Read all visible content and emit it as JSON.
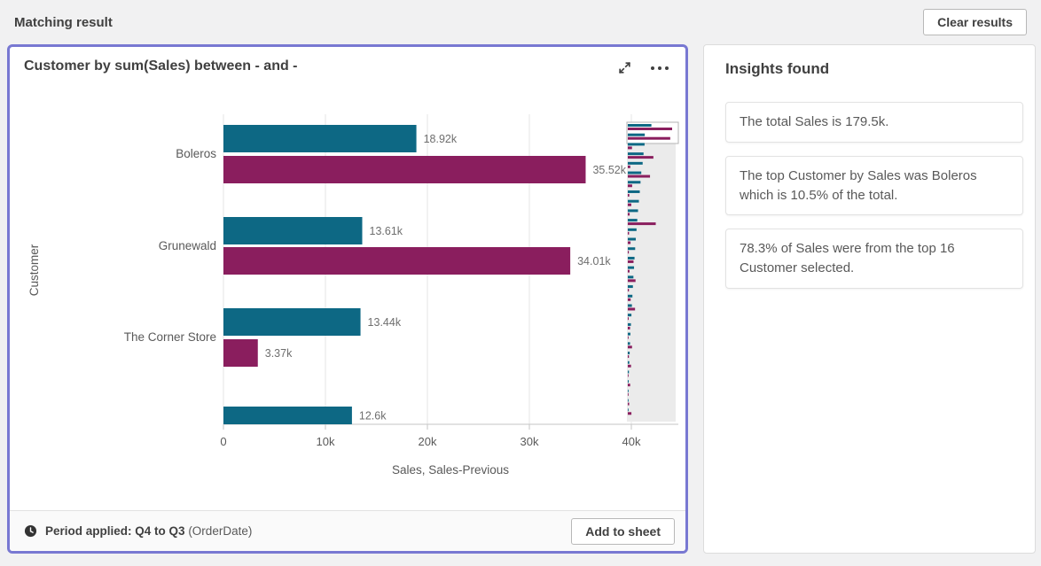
{
  "header": {
    "title": "Matching result",
    "clear_button": "Clear results"
  },
  "icons": {
    "expand": "⤢",
    "more": "•••",
    "clock": "🕐"
  },
  "chart_card": {
    "title": "Customer by sum(Sales) between - and -",
    "footer": {
      "label": "Period applied:",
      "period": "Q4 to Q3",
      "source": "(OrderDate)",
      "add_button": "Add to sheet"
    }
  },
  "chart_data": {
    "type": "bar",
    "orientation": "horizontal",
    "title": "Customer by sum(Sales) between - and -",
    "xlabel": "Sales, Sales-Previous",
    "ylabel": "Customer",
    "x_ticks": [
      "0",
      "10k",
      "20k",
      "30k",
      "40k"
    ],
    "x_tick_values": [
      0,
      10000,
      20000,
      30000,
      40000
    ],
    "xlim": [
      0,
      44600
    ],
    "grid": true,
    "series": [
      {
        "name": "Sales",
        "color": "#0d6884"
      },
      {
        "name": "Sales-Previous",
        "color": "#8a1e5e"
      }
    ],
    "categories": [
      "Boleros",
      "Grunewald",
      "The Corner Store"
    ],
    "rows": [
      {
        "category": "Boleros",
        "sales": 18920,
        "sales_label": "18.92k",
        "previous": 35520,
        "previous_label": "35.52k"
      },
      {
        "category": "Grunewald",
        "sales": 13610,
        "sales_label": "13.61k",
        "previous": 34010,
        "previous_label": "34.01k"
      },
      {
        "category": "The Corner Store",
        "sales": 13440,
        "sales_label": "13.44k",
        "previous": 3370,
        "previous_label": "3.37k"
      },
      {
        "category": "",
        "sales": 12600,
        "sales_label": "12.6k",
        "previous": null,
        "previous_label": null,
        "clipped": true
      }
    ],
    "overview": {
      "note": "scroll minimap of all customers, viewport on first rows",
      "pairs": [
        [
          18.92,
          35.52
        ],
        [
          13.61,
          34.01
        ],
        [
          13.44,
          3.37
        ],
        [
          12.6,
          20.5
        ],
        [
          11.9,
          2.0
        ],
        [
          10.8,
          17.8
        ],
        [
          10.2,
          3.5
        ],
        [
          9.6,
          1.2
        ],
        [
          8.9,
          2.8
        ],
        [
          8.2,
          1.5
        ],
        [
          7.6,
          22.4
        ],
        [
          7.0,
          1.0
        ],
        [
          6.4,
          2.2
        ],
        [
          5.9,
          0.8
        ],
        [
          5.4,
          4.6
        ],
        [
          5.0,
          1.4
        ],
        [
          4.5,
          6.2
        ],
        [
          4.1,
          0.9
        ],
        [
          3.7,
          2.3
        ],
        [
          3.3,
          5.8
        ],
        [
          2.9,
          0.7
        ],
        [
          2.5,
          1.8
        ],
        [
          2.1,
          0.5
        ],
        [
          1.8,
          3.4
        ],
        [
          1.5,
          0.9
        ],
        [
          1.2,
          2.6
        ],
        [
          0.9,
          0.4
        ],
        [
          0.7,
          1.9
        ],
        [
          0.5,
          0.3
        ],
        [
          0.4,
          1.1
        ],
        [
          0.2,
          2.9
        ]
      ]
    }
  },
  "insights": {
    "title": "Insights found",
    "items": [
      {
        "text": "The total Sales is 179.5k."
      },
      {
        "text": "The top Customer by Sales was Boleros which is 10.5% of the total."
      },
      {
        "text": "78.3% of Sales were from the top 16 Customer selected."
      }
    ]
  },
  "colors": {
    "sales": "#0d6884",
    "sales_previous": "#8a1e5e",
    "selection_border": "#7878d2",
    "page_background": "#f1f1f2",
    "gridline": "#e6e6e6",
    "axis": "#c6c6c6",
    "text_primary": "#404040",
    "text_secondary": "#595959",
    "value_label": "#6e6e6e",
    "minimap_background": "#ebebeb"
  }
}
